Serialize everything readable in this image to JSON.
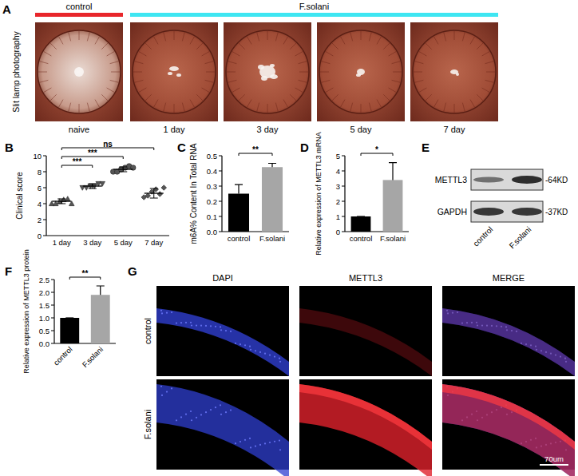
{
  "figure": {
    "panel_labels": [
      "A",
      "B",
      "C",
      "D",
      "E",
      "F",
      "G"
    ],
    "slit_lamp": {
      "row_label": "Slit lamp photography",
      "groups": [
        {
          "label": "control",
          "color": "#e8262b"
        },
        {
          "label": "F.solani",
          "color": "#3ee6f2"
        }
      ],
      "images": [
        "naive",
        "1 day",
        "3 day",
        "5 day",
        "7 day"
      ]
    },
    "western_blot": {
      "proteins": [
        "METTL3",
        "GAPDH"
      ],
      "sizes": [
        "-64KD",
        "-37KD"
      ],
      "lanes": [
        "control",
        "F.solani"
      ]
    },
    "immunofluorescence": {
      "columns": [
        "DAPI",
        "METTL3",
        "MERGE"
      ],
      "rows": [
        "control",
        "F.solani"
      ],
      "scale_bar": "70um"
    }
  },
  "chart_data": [
    {
      "type": "dot",
      "y_label": "Clinical score",
      "categories": [
        "1 day",
        "3 day",
        "5 day",
        "7 day"
      ],
      "values": [
        4.3,
        6.2,
        8.3,
        5.3
      ],
      "errors": [
        0.3,
        0.3,
        0.3,
        0.6
      ],
      "points": [
        [
          4.0,
          4.0,
          4.3,
          4.5,
          4.6,
          4.0
        ],
        [
          6.0,
          6.0,
          6.2,
          6.2,
          6.5,
          6.5
        ],
        [
          8.0,
          8.0,
          8.3,
          8.5,
          8.7,
          8.5
        ],
        [
          4.8,
          5.0,
          5.5,
          5.8,
          5.2,
          6.0
        ]
      ],
      "ylim": [
        0,
        10
      ],
      "yticks": [
        0,
        2,
        4,
        6,
        8,
        10
      ],
      "annotations": [
        {
          "label": "***",
          "from": 0,
          "to": 1
        },
        {
          "label": "***",
          "from": 0,
          "to": 2
        },
        {
          "label": "ns",
          "from": 0,
          "to": 3
        }
      ]
    },
    {
      "type": "bar",
      "y_label": "m6A% Content In Total RNA",
      "categories": [
        "control",
        "F.solani"
      ],
      "values": [
        0.25,
        0.425
      ],
      "errors": [
        0.06,
        0.025
      ],
      "colors": [
        "#000000",
        "#a6a6a6"
      ],
      "ylim": [
        0,
        0.5
      ],
      "yticks": [
        {
          "value": 0,
          "label": "0.0"
        },
        {
          "value": 0.1,
          "label": "0.1"
        },
        {
          "value": 0.2,
          "label": "0.2"
        },
        {
          "value": 0.3,
          "label": "0.3"
        },
        {
          "value": 0.4,
          "label": "0.4"
        },
        {
          "value": 0.5,
          "label": "0.5"
        }
      ],
      "annotations": [
        {
          "label": "**",
          "from": 0,
          "to": 1
        }
      ]
    },
    {
      "type": "bar",
      "y_label": "Relative expression of METTL3 mRNA",
      "categories": [
        "control",
        "F.solani"
      ],
      "values": [
        1,
        3.4
      ],
      "errors": [
        0,
        1.15
      ],
      "colors": [
        "#000000",
        "#a6a6a6"
      ],
      "ylim": [
        0,
        5
      ],
      "yticks": [
        0,
        1,
        2,
        3,
        4,
        5
      ],
      "annotations": [
        {
          "label": "*",
          "from": 0,
          "to": 1
        }
      ]
    },
    {
      "type": "bar",
      "y_label": "Relative expression of METTL3 protein",
      "categories": [
        "control",
        "F.solani"
      ],
      "values": [
        1,
        1.9
      ],
      "errors": [
        0,
        0.35
      ],
      "colors": [
        "#000000",
        "#a6a6a6"
      ],
      "ylim": [
        0,
        2.5
      ],
      "yticks": [
        {
          "value": 0,
          "label": "0.0"
        },
        {
          "value": 0.5,
          "label": "0.5"
        },
        {
          "value": 1,
          "label": "1.0"
        },
        {
          "value": 1.5,
          "label": "1.5"
        },
        {
          "value": 2,
          "label": "2.0"
        },
        {
          "value": 2.5,
          "label": "2.5"
        }
      ],
      "annotations": [
        {
          "label": "**",
          "from": 0,
          "to": 1
        }
      ]
    }
  ]
}
